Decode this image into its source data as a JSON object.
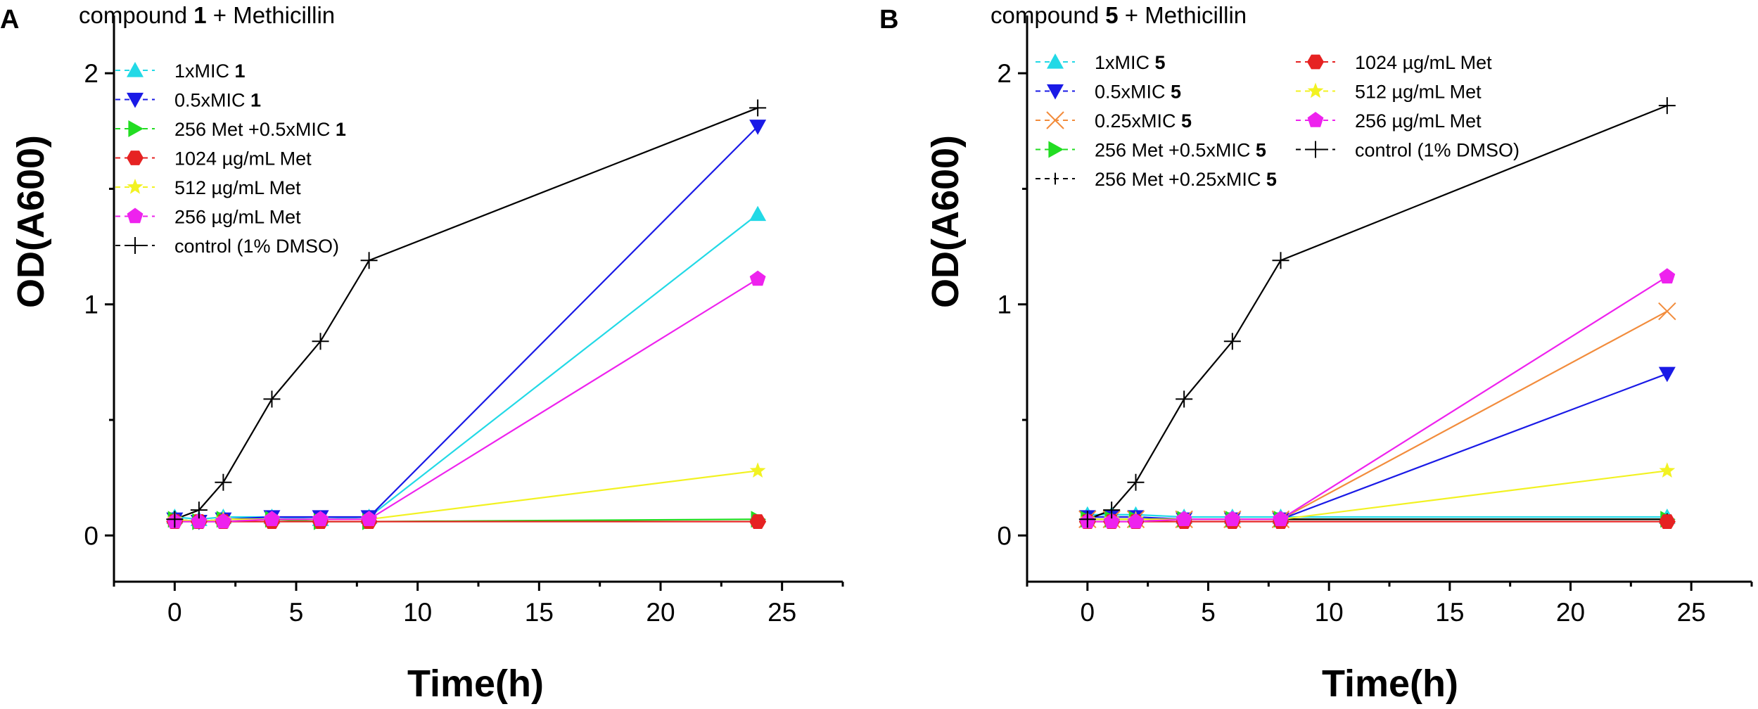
{
  "figure": {
    "panels": [
      {
        "letter": "A",
        "title_pre": "compound ",
        "title_bold": "1",
        "title_post": " + Methicillin"
      },
      {
        "letter": "B",
        "title_pre": "compound ",
        "title_bold": "5",
        "title_post": " + Methicillin"
      }
    ]
  },
  "chart_data": [
    {
      "type": "line",
      "title": "compound 1 + Methicillin",
      "xlabel": "Time(h)",
      "ylabel": "OD(A600)",
      "xlim": [
        -2.5,
        27.5
      ],
      "ylim": [
        -0.2,
        2.25
      ],
      "xticks": [
        0,
        5,
        10,
        15,
        20,
        25
      ],
      "yticks": [
        0,
        1,
        2
      ],
      "x": [
        0,
        1,
        2,
        4,
        6,
        8,
        24
      ],
      "series": [
        {
          "name": "1xMIC ",
          "name_bold": "1",
          "color": "#22d9e6",
          "marker": "triangle-up",
          "values": [
            0.08,
            0.07,
            0.08,
            0.08,
            0.07,
            0.08,
            1.39
          ]
        },
        {
          "name": "0.5xMIC ",
          "name_bold": "1",
          "color": "#1a1ae6",
          "marker": "triangle-down",
          "values": [
            0.07,
            0.06,
            0.07,
            0.08,
            0.08,
            0.08,
            1.77
          ]
        },
        {
          "name": "256 Met +0.5xMIC ",
          "name_bold": "1",
          "color": "#22dd22",
          "marker": "triangle-right",
          "values": [
            0.07,
            0.06,
            0.07,
            0.07,
            0.06,
            0.06,
            0.07
          ]
        },
        {
          "name": "1024 µg/mL Met",
          "name_bold": "",
          "color": "#e62222",
          "marker": "hexagon",
          "values": [
            0.06,
            0.06,
            0.06,
            0.06,
            0.06,
            0.06,
            0.06
          ]
        },
        {
          "name": "512 µg/mL Met",
          "name_bold": "",
          "color": "#f2f222",
          "marker": "star",
          "values": [
            0.07,
            0.06,
            0.07,
            0.07,
            0.07,
            0.07,
            0.28
          ]
        },
        {
          "name": "256 µg/mL Met",
          "name_bold": "",
          "color": "#ee22ee",
          "marker": "pentagon",
          "values": [
            0.06,
            0.06,
            0.06,
            0.07,
            0.07,
            0.07,
            1.11
          ]
        },
        {
          "name": "control (1% DMSO)",
          "name_bold": "",
          "color": "#000000",
          "marker": "plus",
          "values": [
            0.07,
            0.11,
            0.23,
            0.59,
            0.84,
            1.19,
            1.85
          ]
        }
      ]
    },
    {
      "type": "line",
      "title": "compound 5 + Methicillin",
      "xlabel": "Time(h)",
      "ylabel": "OD(A600)",
      "xlim": [
        -2.5,
        27.5
      ],
      "ylim": [
        -0.2,
        2.25
      ],
      "xticks": [
        0,
        5,
        10,
        15,
        20,
        25
      ],
      "yticks": [
        0,
        1,
        2
      ],
      "x": [
        0,
        1,
        2,
        4,
        6,
        8,
        24
      ],
      "series": [
        {
          "name": "1xMIC ",
          "name_bold": "5",
          "color": "#22d9e6",
          "marker": "triangle-up",
          "values": [
            0.09,
            0.09,
            0.09,
            0.08,
            0.08,
            0.08,
            0.08
          ]
        },
        {
          "name": "0.5xMIC ",
          "name_bold": "5",
          "color": "#1a1ae6",
          "marker": "triangle-down",
          "values": [
            0.08,
            0.08,
            0.08,
            0.07,
            0.07,
            0.07,
            0.7
          ]
        },
        {
          "name": "0.25xMIC ",
          "name_bold": "5",
          "color": "#f28c3c",
          "marker": "x",
          "values": [
            0.07,
            0.07,
            0.07,
            0.07,
            0.07,
            0.07,
            0.97
          ]
        },
        {
          "name": "256 Met +0.5xMIC ",
          "name_bold": "5",
          "color": "#22dd22",
          "marker": "triangle-right",
          "values": [
            0.07,
            0.07,
            0.07,
            0.07,
            0.07,
            0.07,
            0.07
          ]
        },
        {
          "name": "256 Met +0.25xMIC ",
          "name_bold": "5",
          "color": "#000000",
          "marker": "vbar",
          "values": [
            0.07,
            0.07,
            0.07,
            0.07,
            0.07,
            0.07,
            0.07
          ]
        },
        {
          "name": "1024 µg/mL Met",
          "name_bold": "",
          "color": "#e62222",
          "marker": "hexagon",
          "values": [
            0.06,
            0.06,
            0.06,
            0.06,
            0.06,
            0.06,
            0.06
          ]
        },
        {
          "name": "512 µg/mL Met",
          "name_bold": "",
          "color": "#f2f222",
          "marker": "star",
          "values": [
            0.07,
            0.07,
            0.07,
            0.07,
            0.07,
            0.07,
            0.28
          ]
        },
        {
          "name": "256 µg/mL Met",
          "name_bold": "",
          "color": "#ee22ee",
          "marker": "pentagon",
          "values": [
            0.06,
            0.06,
            0.06,
            0.07,
            0.07,
            0.07,
            1.12
          ]
        },
        {
          "name": "control (1% DMSO)",
          "name_bold": "",
          "color": "#000000",
          "marker": "plus",
          "values": [
            0.07,
            0.11,
            0.23,
            0.59,
            0.84,
            1.19,
            1.86
          ]
        }
      ]
    }
  ]
}
